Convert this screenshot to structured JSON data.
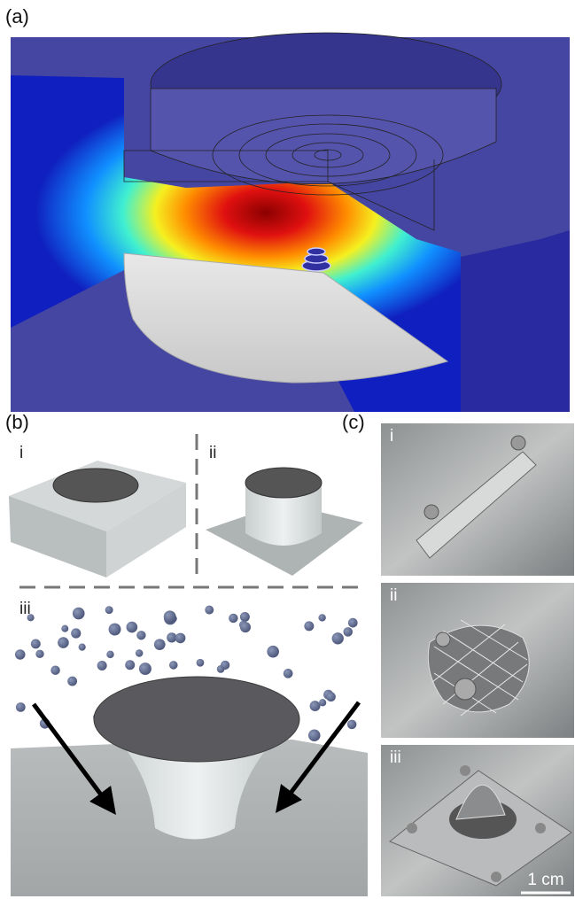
{
  "panels": {
    "a": {
      "label": "(a)"
    },
    "b": {
      "label": "(b)",
      "subpanels": [
        "i",
        "ii",
        "iii"
      ]
    },
    "c": {
      "label": "(c)",
      "subpanels": [
        "i",
        "ii",
        "iii"
      ],
      "scale_bar": "1 cm"
    }
  }
}
